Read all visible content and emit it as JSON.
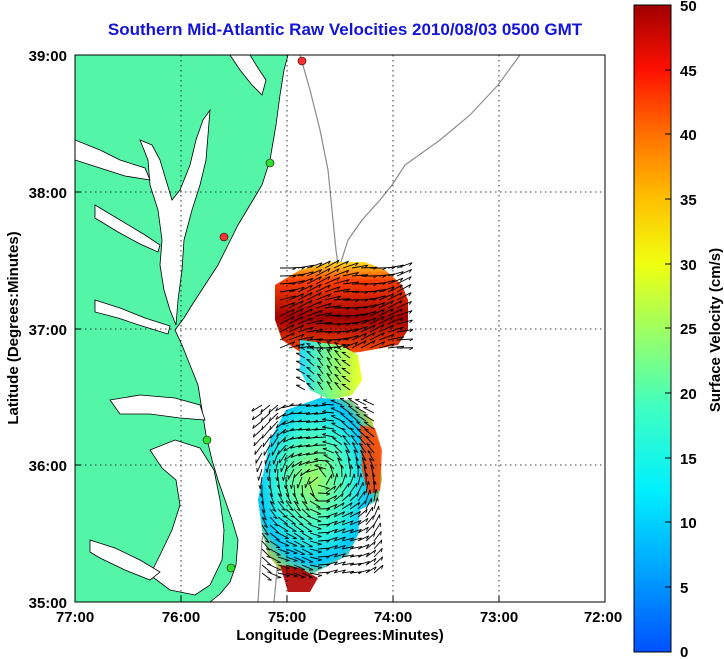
{
  "title": "Southern Mid-Atlantic Raw Velocities 2010/08/03 0500 GMT",
  "map": {
    "xlabel": "Longitude (Degrees:Minutes)",
    "ylabel": "Latitude (Degrees:Minutes)",
    "lon_ticks": [
      "77:00",
      "76:00",
      "75:00",
      "74:00",
      "73:00",
      "72:00"
    ],
    "lat_ticks": [
      "39:00",
      "38:00",
      "37:00",
      "36:00",
      "35:00"
    ],
    "land_color": "#55f5a8",
    "grid": true,
    "stations": [
      {
        "color": "#ff3030"
      },
      {
        "color": "#30e030"
      },
      {
        "color": "#ff3030"
      },
      {
        "color": "#30e030"
      },
      {
        "color": "#30e030"
      }
    ]
  },
  "colorbar": {
    "label": "Surface Velocity (cm/s)",
    "ticks": [
      "50",
      "45",
      "40",
      "35",
      "30",
      "25",
      "20",
      "15",
      "10",
      "5",
      "0"
    ],
    "range": [
      0,
      50
    ],
    "colormap": "jet"
  }
}
